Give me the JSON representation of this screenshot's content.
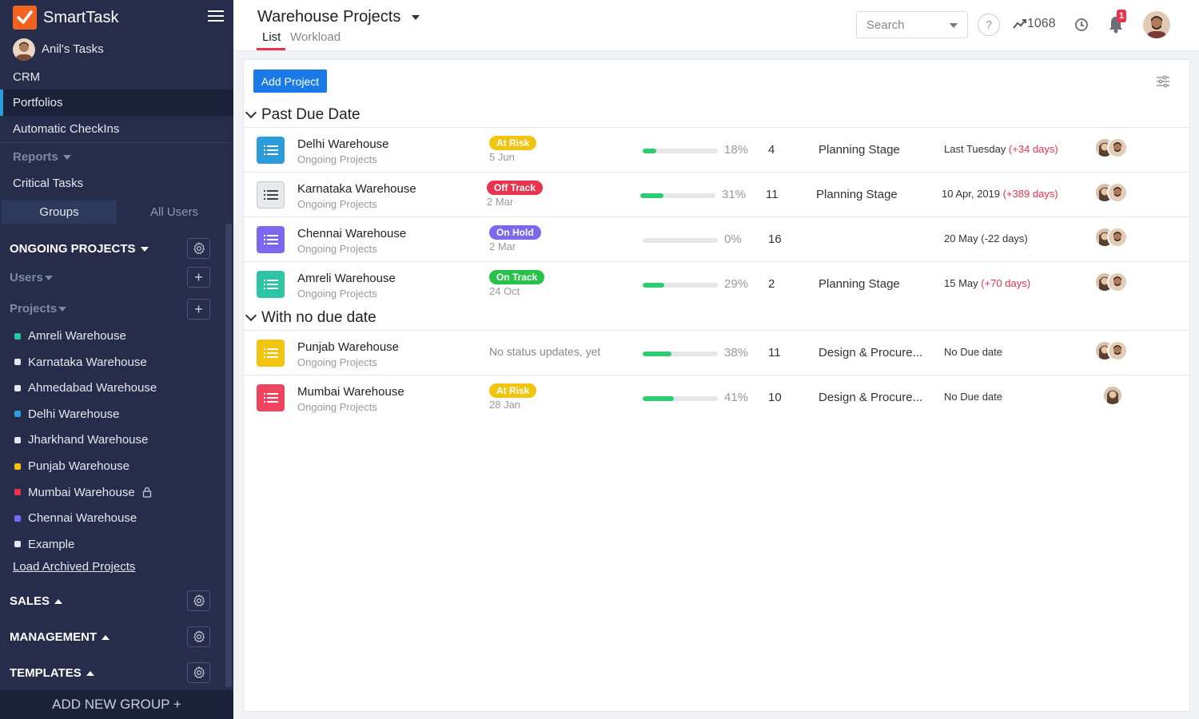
{
  "app": {
    "name": "SmartTask"
  },
  "sidebar": {
    "user_tasks": "Anil's Tasks",
    "crm": "CRM",
    "portfolios": "Portfolios",
    "checkins": "Automatic CheckIns",
    "reports": "Reports",
    "critical": "Critical Tasks",
    "tab_groups": "Groups",
    "tab_users": "All Users",
    "ongoing_title": "ONGOING PROJECTS",
    "users_label": "Users",
    "projects_label": "Projects",
    "projects": [
      {
        "name": "Amreli Warehouse",
        "color": "#2ec4a6"
      },
      {
        "name": "Karnataka Warehouse",
        "color": "#e6e8ef"
      },
      {
        "name": "Ahmedabad Warehouse",
        "color": "#e6e8ef"
      },
      {
        "name": "Delhi Warehouse",
        "color": "#2d9cdb"
      },
      {
        "name": "Jharkhand Warehouse",
        "color": "#e6e8ef"
      },
      {
        "name": "Punjab Warehouse",
        "color": "#f1c40f"
      },
      {
        "name": "Mumbai Warehouse",
        "color": "#e8344e"
      },
      {
        "name": "Chennai Warehouse",
        "color": "#7b68ee"
      },
      {
        "name": "Example",
        "color": "#e6e8ef"
      }
    ],
    "load_archived": "Load Archived Projects",
    "sales": "SALES",
    "management": "MANAGEMENT",
    "templates": "TEMPLATES",
    "add_group": "ADD NEW GROUP +"
  },
  "header": {
    "title": "Warehouse Projects",
    "tab_list": "List",
    "tab_workload": "Workload",
    "search_placeholder": "Search",
    "help": "?",
    "trend_count": "1068",
    "notif_count": "1"
  },
  "main": {
    "add_project": "Add Project",
    "groups": [
      {
        "title": "Past Due Date",
        "rows": [
          {
            "name": "Delhi Warehouse",
            "sub": "Ongoing Projects",
            "icon_color": "#2d9cdb",
            "status": "At Risk",
            "status_color": "#f1c40f",
            "status_date": "5 Jun",
            "progress": 18,
            "progress_label": "18%",
            "count": "4",
            "stage": "Planning Stage",
            "due": "Last Tuesday",
            "due_extra": "(+34 days)",
            "avatars": 2
          },
          {
            "name": "Karnataka Warehouse",
            "sub": "Ongoing Projects",
            "icon_color": "grey",
            "status": "Off Track",
            "status_color": "#e8344e",
            "status_date": "2 Mar",
            "progress": 31,
            "progress_label": "31%",
            "count": "11",
            "stage": "Planning Stage",
            "due": "10 Apr, 2019",
            "due_extra": "(+389 days)",
            "avatars": 2
          },
          {
            "name": "Chennai Warehouse",
            "sub": "Ongoing Projects",
            "icon_color": "#7b68ee",
            "status": "On Hold",
            "status_color": "#7b68ee",
            "status_date": "2 Mar",
            "progress": 0,
            "progress_label": "0%",
            "count": "16",
            "stage": "",
            "due": "20 May (-22 days)",
            "due_extra": "",
            "avatars": 2
          },
          {
            "name": "Amreli Warehouse",
            "sub": "Ongoing Projects",
            "icon_color": "#2ec4a6",
            "status": "On Track",
            "status_color": "#27c24c",
            "status_date": "24 Oct",
            "progress": 29,
            "progress_label": "29%",
            "count": "2",
            "stage": "Planning Stage",
            "due": "15 May",
            "due_extra": "(+70 days)",
            "avatars": 2
          }
        ]
      },
      {
        "title": "With no due date",
        "rows": [
          {
            "name": "Punjab Warehouse",
            "sub": "Ongoing Projects",
            "icon_color": "#f1c40f",
            "status": "",
            "no_status": "No status updates, yet",
            "progress": 38,
            "progress_label": "38%",
            "count": "11",
            "stage": "Design & Procure...",
            "due": "No Due date",
            "due_extra": "",
            "avatars": 2
          },
          {
            "name": "Mumbai Warehouse",
            "sub": "Ongoing Projects",
            "icon_color": "#f0435d",
            "status": "At Risk",
            "status_color": "#f1c40f",
            "status_date": "28 Jan",
            "progress": 41,
            "progress_label": "41%",
            "count": "10",
            "stage": "Design & Procure...",
            "due": "No Due date",
            "due_extra": "",
            "avatars": 1
          }
        ]
      }
    ]
  }
}
